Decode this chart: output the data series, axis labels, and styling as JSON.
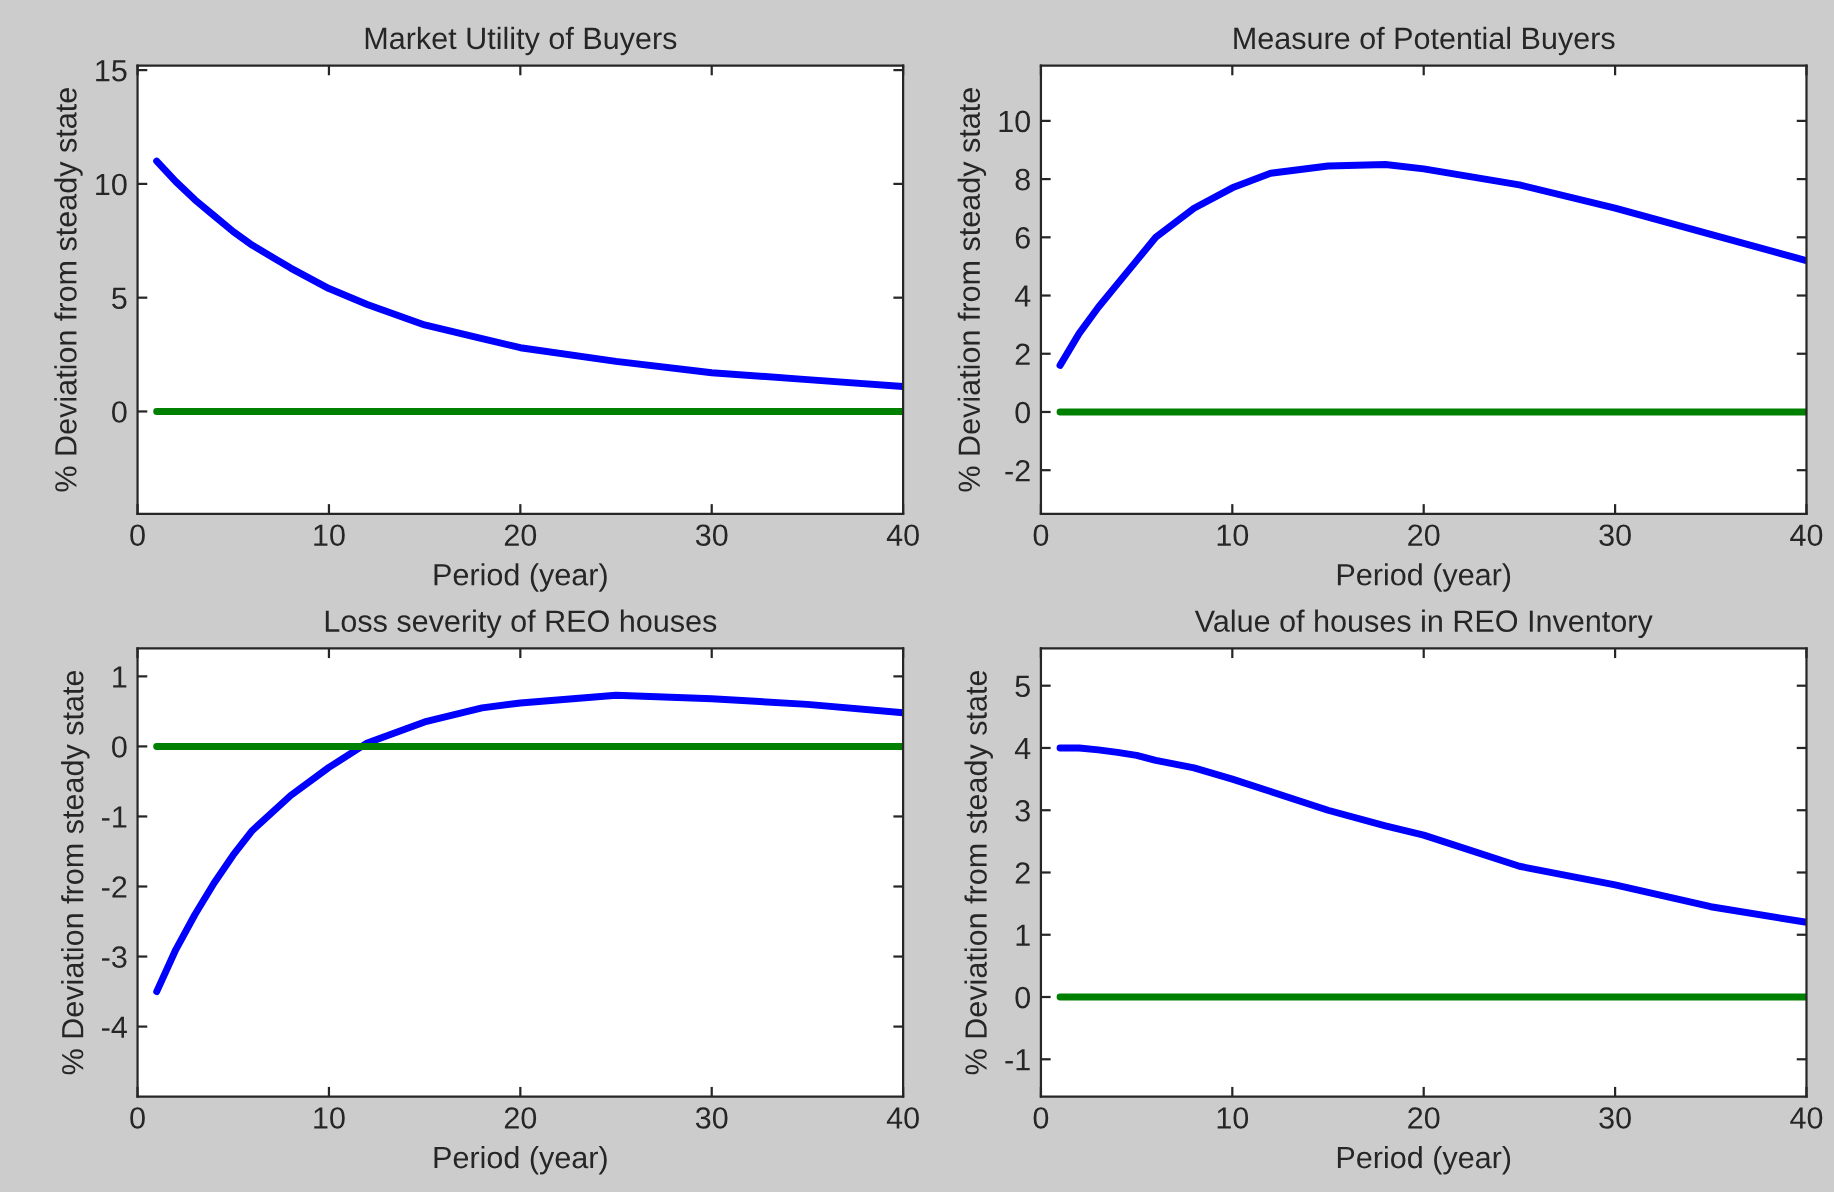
{
  "chart_data": [
    {
      "type": "line",
      "title": "Market Utility of Buyers",
      "xlabel": "Period (year)",
      "ylabel": "% Deviation from steady state",
      "xlim": [
        0,
        40
      ],
      "xticks": [
        0,
        10,
        20,
        30,
        40
      ],
      "ylim": [
        -4.5,
        15.2
      ],
      "yticks": [
        0,
        5,
        10,
        15
      ],
      "grid": false,
      "legend": false,
      "series": [
        {
          "color": "#0000ff",
          "x": [
            1,
            2,
            3,
            4,
            5,
            6,
            8,
            10,
            12,
            15,
            18,
            20,
            25,
            30,
            35,
            40
          ],
          "values": [
            11,
            10.1,
            9.3,
            8.6,
            7.9,
            7.3,
            6.3,
            5.4,
            4.7,
            3.8,
            3.2,
            2.8,
            2.2,
            1.7,
            1.4,
            1.1
          ]
        },
        {
          "color": "#008000",
          "x": [
            1,
            40
          ],
          "values": [
            0,
            0
          ]
        }
      ]
    },
    {
      "type": "line",
      "title": "Measure of Potential Buyers",
      "xlabel": "Period (year)",
      "ylabel": "% Deviation from steady state",
      "xlim": [
        0,
        40
      ],
      "xticks": [
        0,
        10,
        20,
        30,
        40
      ],
      "ylim": [
        -3.5,
        11.9
      ],
      "yticks": [
        -2,
        0,
        2,
        4,
        6,
        8,
        10
      ],
      "grid": false,
      "legend": false,
      "series": [
        {
          "color": "#0000ff",
          "x": [
            1,
            2,
            3,
            4,
            5,
            6,
            8,
            10,
            12,
            15,
            18,
            20,
            25,
            30,
            35,
            40
          ],
          "values": [
            1.6,
            2.7,
            3.6,
            4.4,
            5.2,
            6.0,
            7.0,
            7.7,
            8.2,
            8.45,
            8.5,
            8.35,
            7.8,
            7.0,
            6.1,
            5.2
          ]
        },
        {
          "color": "#008000",
          "x": [
            1,
            40
          ],
          "values": [
            0,
            0
          ]
        }
      ]
    },
    {
      "type": "line",
      "title": "Loss severity of REO houses",
      "xlabel": "Period (year)",
      "ylabel": "% Deviation from steady state",
      "xlim": [
        0,
        40
      ],
      "xticks": [
        0,
        10,
        20,
        30,
        40
      ],
      "ylim": [
        -5,
        1.4
      ],
      "yticks": [
        -4,
        -3,
        -2,
        -1,
        0,
        1
      ],
      "grid": false,
      "legend": false,
      "series": [
        {
          "color": "#0000ff",
          "x": [
            1,
            2,
            3,
            4,
            5,
            6,
            8,
            10,
            12,
            15,
            18,
            20,
            25,
            30,
            35,
            40
          ],
          "values": [
            -3.5,
            -2.9,
            -2.4,
            -1.95,
            -1.55,
            -1.2,
            -0.7,
            -0.3,
            0.05,
            0.35,
            0.55,
            0.62,
            0.73,
            0.68,
            0.6,
            0.48
          ]
        },
        {
          "color": "#008000",
          "x": [
            1,
            40
          ],
          "values": [
            0,
            0
          ]
        }
      ]
    },
    {
      "type": "line",
      "title": "Value of houses in REO Inventory",
      "xlabel": "Period (year)",
      "ylabel": "% Deviation from steady state",
      "xlim": [
        0,
        40
      ],
      "xticks": [
        0,
        10,
        20,
        30,
        40
      ],
      "ylim": [
        -1.6,
        5.6
      ],
      "yticks": [
        -1,
        0,
        1,
        2,
        3,
        4,
        5
      ],
      "grid": false,
      "legend": false,
      "series": [
        {
          "color": "#0000ff",
          "x": [
            1,
            2,
            3,
            4,
            5,
            6,
            8,
            10,
            12,
            15,
            18,
            20,
            25,
            30,
            35,
            40
          ],
          "values": [
            4.0,
            4.0,
            3.97,
            3.93,
            3.88,
            3.8,
            3.68,
            3.5,
            3.3,
            3.0,
            2.75,
            2.6,
            2.1,
            1.8,
            1.45,
            1.2
          ]
        },
        {
          "color": "#008000",
          "x": [
            1,
            40
          ],
          "values": [
            0,
            0
          ]
        }
      ]
    }
  ]
}
